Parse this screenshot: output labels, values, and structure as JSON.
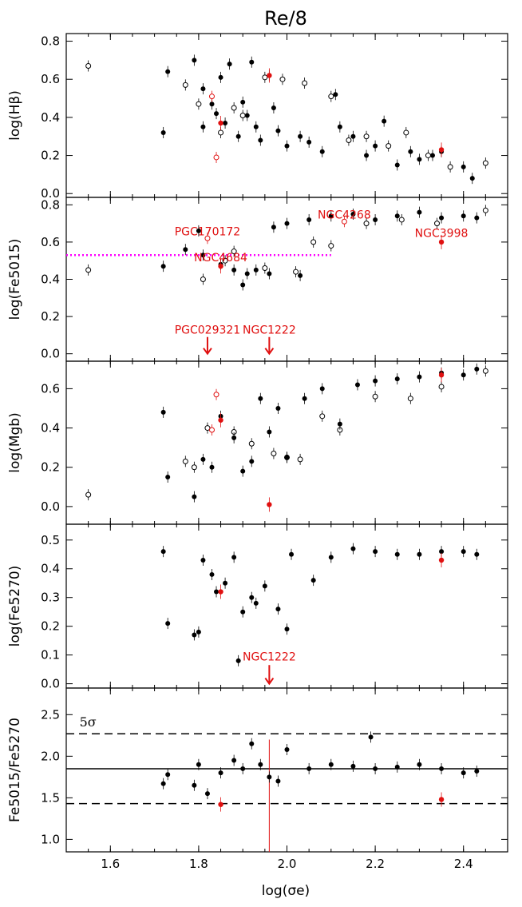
{
  "chart_data": {
    "type": "scatter",
    "title": "Re/8",
    "xlabel": "log(σe)",
    "xlim": [
      1.5,
      2.5
    ],
    "xticks": [
      "1.6",
      "1.8",
      "2.0",
      "2.2",
      "2.4"
    ],
    "colors": {
      "primary": "#000000",
      "highlight": "#e01010",
      "threshold": "#ff00ff"
    },
    "panels": [
      {
        "ylabel": "log(Hβ)",
        "ylim": [
          -0.02,
          0.84
        ],
        "yticks": [
          "0.0",
          "0.2",
          "0.4",
          "0.6",
          "0.8"
        ],
        "filled": [
          [
            1.72,
            0.32
          ],
          [
            1.73,
            0.64
          ],
          [
            1.79,
            0.7
          ],
          [
            1.81,
            0.55
          ],
          [
            1.81,
            0.35
          ],
          [
            1.83,
            0.47
          ],
          [
            1.84,
            0.42
          ],
          [
            1.85,
            0.61
          ],
          [
            1.86,
            0.37
          ],
          [
            1.87,
            0.68
          ],
          [
            1.89,
            0.3
          ],
          [
            1.9,
            0.48
          ],
          [
            1.91,
            0.41
          ],
          [
            1.92,
            0.69
          ],
          [
            1.93,
            0.35
          ],
          [
            1.94,
            0.28
          ],
          [
            1.96,
            0.62
          ],
          [
            1.97,
            0.45
          ],
          [
            1.98,
            0.33
          ],
          [
            2.0,
            0.25
          ],
          [
            2.03,
            0.3
          ],
          [
            2.05,
            0.27
          ],
          [
            2.08,
            0.22
          ],
          [
            2.11,
            0.52
          ],
          [
            2.12,
            0.35
          ],
          [
            2.15,
            0.3
          ],
          [
            2.18,
            0.2
          ],
          [
            2.2,
            0.25
          ],
          [
            2.22,
            0.38
          ],
          [
            2.25,
            0.15
          ],
          [
            2.28,
            0.22
          ],
          [
            2.3,
            0.18
          ],
          [
            2.33,
            0.2
          ],
          [
            2.35,
            0.22
          ],
          [
            2.4,
            0.14
          ],
          [
            2.42,
            0.08
          ]
        ],
        "open": [
          [
            1.55,
            0.67
          ],
          [
            1.77,
            0.57
          ],
          [
            1.8,
            0.47
          ],
          [
            1.85,
            0.32
          ],
          [
            1.88,
            0.45
          ],
          [
            1.9,
            0.41
          ],
          [
            1.95,
            0.61
          ],
          [
            1.99,
            0.6
          ],
          [
            2.04,
            0.58
          ],
          [
            2.1,
            0.51
          ],
          [
            2.14,
            0.28
          ],
          [
            2.18,
            0.3
          ],
          [
            2.23,
            0.25
          ],
          [
            2.27,
            0.32
          ],
          [
            2.32,
            0.2
          ],
          [
            2.37,
            0.14
          ],
          [
            2.45,
            0.16
          ]
        ],
        "red_filled": [
          [
            1.85,
            0.37
          ],
          [
            1.96,
            0.62
          ],
          [
            2.35,
            0.23
          ]
        ],
        "red_open": [
          [
            1.83,
            0.51
          ],
          [
            1.84,
            0.19
          ]
        ],
        "hlines": [],
        "labels": [],
        "arrows": []
      },
      {
        "ylabel": "log(Fe5015)",
        "ylim": [
          -0.04,
          0.84
        ],
        "yticks": [
          "0.0",
          "0.2",
          "0.4",
          "0.6",
          "0.8"
        ],
        "filled": [
          [
            1.72,
            0.47
          ],
          [
            1.77,
            0.56
          ],
          [
            1.8,
            0.66
          ],
          [
            1.81,
            0.53
          ],
          [
            1.85,
            0.48
          ],
          [
            1.88,
            0.45
          ],
          [
            1.9,
            0.37
          ],
          [
            1.91,
            0.43
          ],
          [
            1.93,
            0.45
          ],
          [
            1.96,
            0.43
          ],
          [
            1.97,
            0.68
          ],
          [
            2.0,
            0.7
          ],
          [
            2.03,
            0.42
          ],
          [
            2.05,
            0.72
          ],
          [
            2.1,
            0.74
          ],
          [
            2.15,
            0.75
          ],
          [
            2.2,
            0.72
          ],
          [
            2.25,
            0.74
          ],
          [
            2.3,
            0.76
          ],
          [
            2.35,
            0.73
          ],
          [
            2.4,
            0.74
          ],
          [
            2.43,
            0.73
          ]
        ],
        "open": [
          [
            1.55,
            0.45
          ],
          [
            1.81,
            0.4
          ],
          [
            1.86,
            0.5
          ],
          [
            1.88,
            0.55
          ],
          [
            1.95,
            0.46
          ],
          [
            2.02,
            0.44
          ],
          [
            2.06,
            0.6
          ],
          [
            2.1,
            0.58
          ],
          [
            2.18,
            0.7
          ],
          [
            2.26,
            0.72
          ],
          [
            2.34,
            0.7
          ],
          [
            2.45,
            0.77
          ]
        ],
        "red_filled": [
          [
            1.85,
            0.47
          ],
          [
            2.35,
            0.6
          ]
        ],
        "red_open": [
          [
            1.82,
            0.62
          ],
          [
            2.13,
            0.71
          ]
        ],
        "hlines": [
          {
            "y": 0.53,
            "x0": 1.5,
            "x1": 2.1,
            "color": "#ff00ff",
            "style": "dotted"
          }
        ],
        "labels": [
          {
            "text": "PGC170172",
            "x": 1.82,
            "y": 0.62
          },
          {
            "text": "NGC4684",
            "x": 1.85,
            "y": 0.48
          },
          {
            "text": "NGC4268",
            "x": 2.13,
            "y": 0.71
          },
          {
            "text": "NGC3998",
            "x": 2.35,
            "y": 0.61
          },
          {
            "text": "PGC029321",
            "x": 1.82,
            "y": 0.09
          },
          {
            "text": "NGC1222",
            "x": 1.96,
            "y": 0.09
          }
        ],
        "arrows": [
          {
            "x": 1.82,
            "y0": 0.09,
            "y1": 0.0
          },
          {
            "x": 1.96,
            "y0": 0.09,
            "y1": 0.0
          }
        ]
      },
      {
        "ylabel": "log(Mgb)",
        "ylim": [
          -0.09,
          0.74
        ],
        "yticks": [
          "0.0",
          "0.2",
          "0.4",
          "0.6"
        ],
        "filled": [
          [
            1.72,
            0.48
          ],
          [
            1.73,
            0.15
          ],
          [
            1.79,
            0.05
          ],
          [
            1.81,
            0.24
          ],
          [
            1.83,
            0.2
          ],
          [
            1.85,
            0.46
          ],
          [
            1.88,
            0.35
          ],
          [
            1.9,
            0.18
          ],
          [
            1.92,
            0.23
          ],
          [
            1.94,
            0.55
          ],
          [
            1.96,
            0.38
          ],
          [
            1.98,
            0.5
          ],
          [
            2.0,
            0.25
          ],
          [
            2.04,
            0.55
          ],
          [
            2.08,
            0.6
          ],
          [
            2.12,
            0.42
          ],
          [
            2.16,
            0.62
          ],
          [
            2.2,
            0.64
          ],
          [
            2.25,
            0.65
          ],
          [
            2.3,
            0.66
          ],
          [
            2.35,
            0.68
          ],
          [
            2.4,
            0.67
          ],
          [
            2.43,
            0.7
          ]
        ],
        "open": [
          [
            1.55,
            0.06
          ],
          [
            1.77,
            0.23
          ],
          [
            1.79,
            0.2
          ],
          [
            1.82,
            0.4
          ],
          [
            1.88,
            0.38
          ],
          [
            1.92,
            0.32
          ],
          [
            1.97,
            0.27
          ],
          [
            2.0,
            0.25
          ],
          [
            2.03,
            0.24
          ],
          [
            2.08,
            0.46
          ],
          [
            2.12,
            0.39
          ],
          [
            2.2,
            0.56
          ],
          [
            2.28,
            0.55
          ],
          [
            2.35,
            0.61
          ],
          [
            2.45,
            0.69
          ]
        ],
        "red_filled": [
          [
            1.85,
            0.44
          ],
          [
            1.96,
            0.01
          ],
          [
            2.35,
            0.67
          ]
        ],
        "red_open": [
          [
            1.83,
            0.39
          ],
          [
            1.84,
            0.57
          ]
        ],
        "hlines": [],
        "labels": [],
        "arrows": []
      },
      {
        "ylabel": "log(Fe5270)",
        "ylim": [
          -0.015,
          0.555
        ],
        "yticks": [
          "0.0",
          "0.1",
          "0.2",
          "0.3",
          "0.4",
          "0.5"
        ],
        "filled": [
          [
            1.72,
            0.46
          ],
          [
            1.73,
            0.21
          ],
          [
            1.79,
            0.17
          ],
          [
            1.8,
            0.18
          ],
          [
            1.81,
            0.43
          ],
          [
            1.83,
            0.38
          ],
          [
            1.84,
            0.32
          ],
          [
            1.86,
            0.35
          ],
          [
            1.88,
            0.44
          ],
          [
            1.89,
            0.08
          ],
          [
            1.9,
            0.25
          ],
          [
            1.92,
            0.3
          ],
          [
            1.93,
            0.28
          ],
          [
            1.95,
            0.34
          ],
          [
            1.98,
            0.26
          ],
          [
            2.0,
            0.19
          ],
          [
            2.01,
            0.45
          ],
          [
            2.06,
            0.36
          ],
          [
            2.1,
            0.44
          ],
          [
            2.15,
            0.47
          ],
          [
            2.2,
            0.46
          ],
          [
            2.25,
            0.45
          ],
          [
            2.3,
            0.45
          ],
          [
            2.35,
            0.46
          ],
          [
            2.4,
            0.46
          ],
          [
            2.43,
            0.45
          ]
        ],
        "open": [],
        "red_filled": [
          [
            1.85,
            0.32
          ],
          [
            2.35,
            0.43
          ]
        ],
        "red_open": [],
        "hlines": [],
        "labels": [
          {
            "text": "NGC1222",
            "x": 1.96,
            "y": 0.07
          }
        ],
        "arrows": [
          {
            "x": 1.96,
            "y0": 0.065,
            "y1": 0.0
          }
        ]
      },
      {
        "ylabel": "Fe5015/Fe5270",
        "ylim": [
          0.85,
          2.82
        ],
        "yticks": [
          "1.0",
          "1.5",
          "2.0",
          "2.5"
        ],
        "filled": [
          [
            1.72,
            1.67
          ],
          [
            1.73,
            1.78
          ],
          [
            1.79,
            1.65
          ],
          [
            1.8,
            1.9
          ],
          [
            1.82,
            1.55
          ],
          [
            1.85,
            1.8
          ],
          [
            1.88,
            1.95
          ],
          [
            1.9,
            1.85
          ],
          [
            1.92,
            2.15
          ],
          [
            1.94,
            1.9
          ],
          [
            1.96,
            1.75
          ],
          [
            1.98,
            1.7
          ],
          [
            2.0,
            2.08
          ],
          [
            2.05,
            1.85
          ],
          [
            2.1,
            1.9
          ],
          [
            2.15,
            1.88
          ],
          [
            2.19,
            2.23
          ],
          [
            2.2,
            1.85
          ],
          [
            2.25,
            1.87
          ],
          [
            2.3,
            1.9
          ],
          [
            2.35,
            1.85
          ],
          [
            2.4,
            1.8
          ],
          [
            2.43,
            1.82
          ]
        ],
        "open": [],
        "red_filled": [
          [
            1.85,
            1.42
          ],
          [
            2.35,
            1.48
          ]
        ],
        "red_open": [],
        "red_errorbars": [
          {
            "x": 1.96,
            "y0": 0.85,
            "y1": 2.2
          }
        ],
        "hlines": [
          {
            "y": 1.85,
            "color": "#000000",
            "style": "solid"
          },
          {
            "y": 2.27,
            "color": "#000000",
            "style": "dashed"
          },
          {
            "y": 1.43,
            "color": "#000000",
            "style": "dashed"
          }
        ],
        "labels": [
          {
            "text": "5σ",
            "x": 1.53,
            "y": 2.36,
            "color": "#000000"
          }
        ],
        "arrows": []
      }
    ]
  }
}
